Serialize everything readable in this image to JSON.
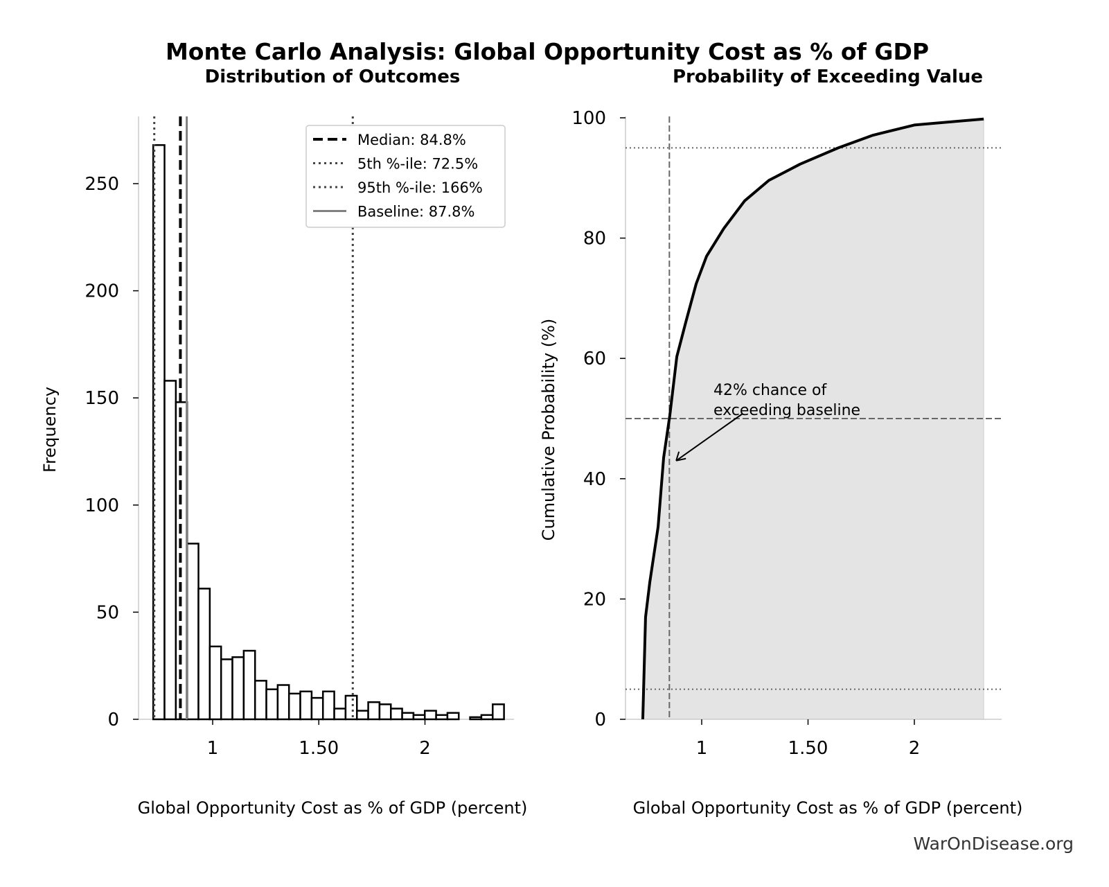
{
  "title": "Monte Carlo Analysis: Global Opportunity Cost as % of GDP",
  "watermark": "WarOnDisease.org",
  "chart_data": [
    {
      "type": "bar",
      "title": "Distribution of Outcomes",
      "xlabel": "Global Opportunity Cost as % of GDP (percent)",
      "ylabel": "Frequency",
      "xlim": [
        0.63,
        2.42
      ],
      "ylim": [
        0,
        282
      ],
      "xticks": [
        1,
        1.5,
        2
      ],
      "xtick_labels": [
        "1",
        "1.50",
        "2"
      ],
      "yticks": [
        0,
        50,
        100,
        150,
        200,
        250
      ],
      "bin_start": 0.72,
      "bin_width": 0.0533,
      "values": [
        268,
        158,
        148,
        82,
        61,
        34,
        28,
        29,
        32,
        18,
        14,
        16,
        12,
        13,
        10,
        13,
        5,
        11,
        4,
        8,
        7,
        5,
        3,
        2,
        4,
        2,
        3,
        0,
        1,
        2,
        7
      ],
      "reference_lines": [
        {
          "label": "Median: 84.8%",
          "x": 0.848,
          "style": "dashed",
          "color": "#000000"
        },
        {
          "label": "5th %-ile: 72.5%",
          "x": 0.725,
          "style": "dotted",
          "color": "#444444"
        },
        {
          "label": "95th %-ile: 166%",
          "x": 1.66,
          "style": "dotted",
          "color": "#444444"
        },
        {
          "label": "Baseline: 87.8%",
          "x": 0.878,
          "style": "solid",
          "color": "#808080"
        }
      ],
      "legend_position": "top-right"
    },
    {
      "type": "line",
      "title": "Probability of Exceeding Value",
      "xlabel": "Global Opportunity Cost as % of GDP (percent)",
      "ylabel": "Cumulative Probability (%)",
      "xlim": [
        0.63,
        2.42
      ],
      "ylim": [
        0,
        100
      ],
      "xticks": [
        1,
        1.5,
        2
      ],
      "xtick_labels": [
        "1",
        "1.50",
        "2"
      ],
      "yticks": [
        0,
        20,
        40,
        60,
        80,
        100
      ],
      "x": [
        0.723,
        0.736,
        0.756,
        0.795,
        0.821,
        0.85,
        0.883,
        0.925,
        0.974,
        1.023,
        1.104,
        1.202,
        1.316,
        1.463,
        1.642,
        1.805,
        2.0,
        2.326
      ],
      "y": [
        0,
        17,
        22.8,
        32,
        43.5,
        50.5,
        60.3,
        66,
        72.4,
        77,
        81.6,
        86.2,
        89.6,
        92.3,
        95,
        97.1,
        98.8,
        99.8
      ],
      "fill_color": "#e4e4e4",
      "hlines": [
        {
          "y": 50,
          "style": "dashed"
        },
        {
          "y": 95,
          "style": "dotted"
        },
        {
          "y": 5,
          "style": "dotted"
        }
      ],
      "vline": {
        "x": 0.848,
        "style": "dashed"
      },
      "annotation": {
        "text_line1": "42% chance of",
        "text_line2": "exceeding baseline",
        "arrow_to": [
          0.88,
          43
        ]
      }
    }
  ]
}
